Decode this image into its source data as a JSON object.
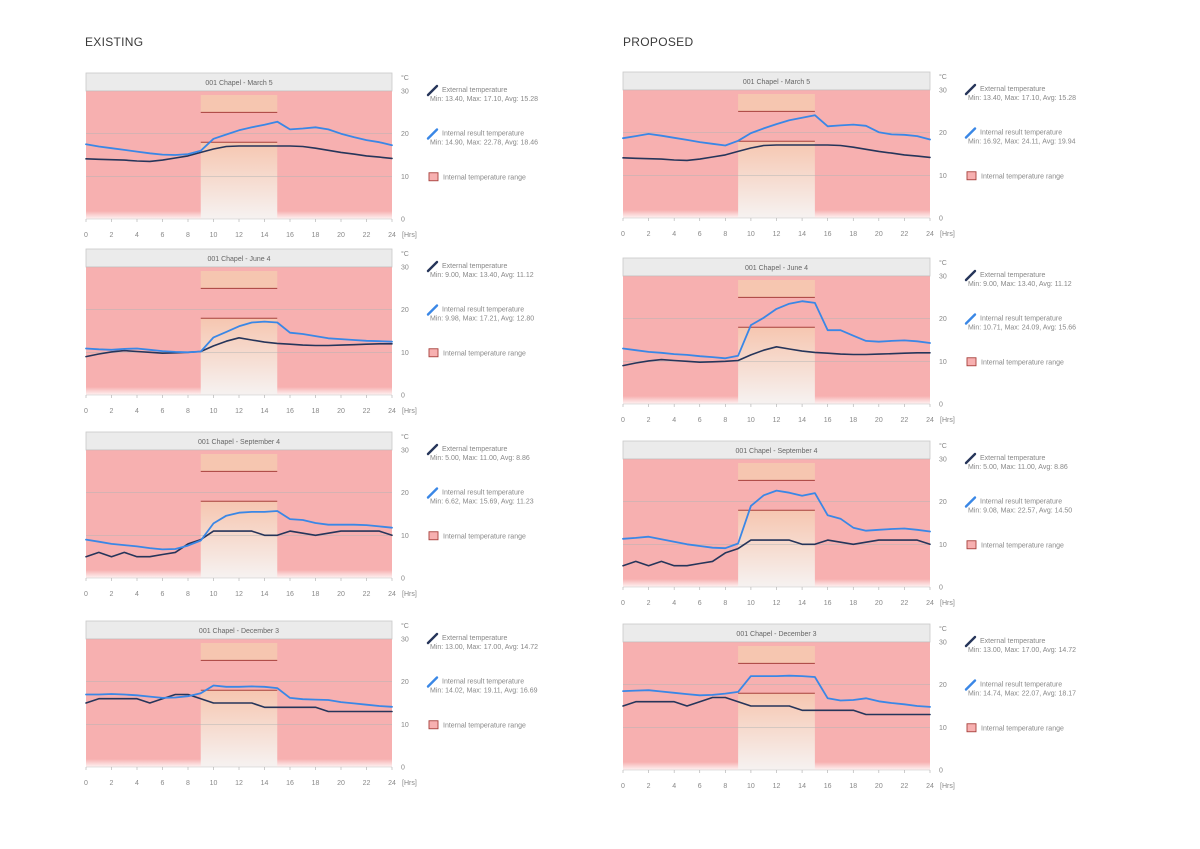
{
  "sections": {
    "existing": "EXISTING",
    "proposed": "PROPOSED"
  },
  "common": {
    "unit": "°C",
    "hours_label": "[Hrs]",
    "x_ticks": [
      "0",
      "2",
      "4",
      "6",
      "8",
      "10",
      "12",
      "14",
      "16",
      "18",
      "20",
      "22",
      "24"
    ],
    "y_ticks": [
      "0",
      "10",
      "20",
      "30"
    ],
    "legend_ext": "External temperature",
    "legend_int": "Internal result temperature",
    "legend_range": "Internal temperature range"
  },
  "colors": {
    "external": "#26355a",
    "internal": "#3a87e6",
    "red_zone": "#f7b0b0",
    "header_bg": "#ebebeb",
    "comfort_top": "#f6c6b0",
    "comfort_bottom": "#f6f2f1",
    "range_line": "#a7413c"
  },
  "chart_data": [
    {
      "type": "line",
      "section": "existing",
      "title": "001 Chapel - March 5",
      "x": [
        0,
        1,
        2,
        3,
        4,
        5,
        6,
        7,
        8,
        9,
        10,
        11,
        12,
        13,
        14,
        15,
        16,
        17,
        18,
        19,
        20,
        21,
        22,
        23,
        24
      ],
      "ylim": [
        0,
        30
      ],
      "xlim": [
        0,
        24
      ],
      "comfort_hours": [
        9,
        15
      ],
      "comfort_range": [
        18,
        25
      ],
      "series": [
        {
          "name": "External temperature",
          "stats": "Min: 13.40, Max: 17.10, Avg: 15.28",
          "values": [
            14.1,
            14.0,
            13.9,
            13.8,
            13.6,
            13.5,
            13.8,
            14.3,
            14.8,
            15.6,
            16.4,
            17.0,
            17.1,
            17.1,
            17.1,
            17.1,
            17.1,
            17.0,
            16.6,
            16.1,
            15.6,
            15.2,
            14.8,
            14.5,
            14.2
          ]
        },
        {
          "name": "Internal result temperature",
          "stats": "Min: 14.90, Max: 22.78, Avg: 18.46",
          "values": [
            17.5,
            17.0,
            16.6,
            16.2,
            15.8,
            15.4,
            15.1,
            15.0,
            15.2,
            16.0,
            18.8,
            19.8,
            20.8,
            21.5,
            22.1,
            22.8,
            21.0,
            21.2,
            21.5,
            21.0,
            20.0,
            19.2,
            18.5,
            18.0,
            17.3
          ]
        }
      ]
    },
    {
      "type": "line",
      "section": "existing",
      "title": "001 Chapel - June 4",
      "x": [
        0,
        1,
        2,
        3,
        4,
        5,
        6,
        7,
        8,
        9,
        10,
        11,
        12,
        13,
        14,
        15,
        16,
        17,
        18,
        19,
        20,
        21,
        22,
        23,
        24
      ],
      "ylim": [
        0,
        30
      ],
      "xlim": [
        0,
        24
      ],
      "comfort_hours": [
        9,
        15
      ],
      "comfort_range": [
        18,
        25
      ],
      "series": [
        {
          "name": "External temperature",
          "stats": "Min: 9.00, Max: 13.40, Avg: 11.12",
          "values": [
            9.0,
            9.6,
            10.1,
            10.4,
            10.2,
            10.0,
            9.8,
            9.9,
            10.0,
            10.2,
            11.5,
            12.6,
            13.4,
            12.9,
            12.4,
            12.1,
            11.9,
            11.7,
            11.6,
            11.6,
            11.7,
            11.8,
            11.9,
            12.0,
            12.0
          ]
        },
        {
          "name": "Internal result temperature",
          "stats": "Min: 9.98, Max: 17.21, Avg: 12.80",
          "values": [
            10.9,
            10.7,
            10.6,
            10.8,
            10.9,
            10.6,
            10.3,
            10.1,
            10.0,
            10.2,
            13.5,
            14.8,
            16.1,
            17.0,
            17.2,
            17.0,
            14.6,
            14.3,
            13.8,
            13.3,
            13.1,
            12.9,
            12.7,
            12.6,
            12.5
          ]
        }
      ]
    },
    {
      "type": "line",
      "section": "existing",
      "title": "001 Chapel - September 4",
      "x": [
        0,
        1,
        2,
        3,
        4,
        5,
        6,
        7,
        8,
        9,
        10,
        11,
        12,
        13,
        14,
        15,
        16,
        17,
        18,
        19,
        20,
        21,
        22,
        23,
        24
      ],
      "ylim": [
        0,
        30
      ],
      "xlim": [
        0,
        24
      ],
      "comfort_hours": [
        9,
        15
      ],
      "comfort_range": [
        18,
        25
      ],
      "series": [
        {
          "name": "External temperature",
          "stats": "Min: 5.00, Max: 11.00, Avg: 8.86",
          "values": [
            5.0,
            6.0,
            5.0,
            6.0,
            5.0,
            5.0,
            5.5,
            6.0,
            8.0,
            9.0,
            11.0,
            11.0,
            11.0,
            11.0,
            10.0,
            10.0,
            11.0,
            10.5,
            10.0,
            10.5,
            11.0,
            11.0,
            11.0,
            11.0,
            10.0
          ]
        },
        {
          "name": "Internal result temperature",
          "stats": "Min: 6.62, Max: 15.69, Avg: 11.23",
          "values": [
            9.0,
            8.5,
            8.0,
            7.7,
            7.4,
            7.0,
            6.7,
            6.8,
            7.6,
            8.8,
            12.8,
            14.6,
            15.3,
            15.5,
            15.5,
            15.7,
            13.8,
            13.6,
            12.9,
            12.5,
            12.5,
            12.5,
            12.4,
            12.1,
            11.8
          ]
        }
      ]
    },
    {
      "type": "line",
      "section": "existing",
      "title": "001 Chapel - December 3",
      "x": [
        0,
        1,
        2,
        3,
        4,
        5,
        6,
        7,
        8,
        9,
        10,
        11,
        12,
        13,
        14,
        15,
        16,
        17,
        18,
        19,
        20,
        21,
        22,
        23,
        24
      ],
      "ylim": [
        0,
        30
      ],
      "xlim": [
        0,
        24
      ],
      "comfort_hours": [
        9,
        15
      ],
      "comfort_range": [
        18,
        25
      ],
      "series": [
        {
          "name": "External temperature",
          "stats": "Min: 13.00, Max: 17.00, Avg: 14.72",
          "values": [
            15.0,
            16.0,
            16.0,
            16.0,
            16.0,
            15.0,
            16.0,
            17.0,
            17.0,
            16.0,
            15.0,
            15.0,
            15.0,
            15.0,
            14.0,
            14.0,
            14.0,
            14.0,
            14.0,
            13.0,
            13.0,
            13.0,
            13.0,
            13.0,
            13.0
          ]
        },
        {
          "name": "Internal result temperature",
          "stats": "Min: 14.02, Max: 19.11, Avg: 16.69",
          "values": [
            17.0,
            17.0,
            17.1,
            17.0,
            16.8,
            16.5,
            16.2,
            16.3,
            16.6,
            17.3,
            19.1,
            18.8,
            18.8,
            18.9,
            18.8,
            18.5,
            16.2,
            15.9,
            15.8,
            15.7,
            15.2,
            14.9,
            14.6,
            14.3,
            14.1
          ]
        }
      ]
    },
    {
      "type": "line",
      "section": "proposed",
      "title": "001 Chapel - March 5",
      "x": [
        0,
        1,
        2,
        3,
        4,
        5,
        6,
        7,
        8,
        9,
        10,
        11,
        12,
        13,
        14,
        15,
        16,
        17,
        18,
        19,
        20,
        21,
        22,
        23,
        24
      ],
      "ylim": [
        0,
        30
      ],
      "xlim": [
        0,
        24
      ],
      "comfort_hours": [
        9,
        15
      ],
      "comfort_range": [
        18,
        25
      ],
      "series": [
        {
          "name": "External temperature",
          "stats": "Min: 13.40, Max: 17.10, Avg: 15.28",
          "values": [
            14.1,
            14.0,
            13.9,
            13.8,
            13.6,
            13.5,
            13.8,
            14.3,
            14.8,
            15.6,
            16.4,
            17.0,
            17.1,
            17.1,
            17.1,
            17.1,
            17.1,
            17.0,
            16.6,
            16.1,
            15.6,
            15.2,
            14.8,
            14.5,
            14.2
          ]
        },
        {
          "name": "Internal result temperature",
          "stats": "Min: 16.92, Max: 24.11, Avg: 19.94",
          "values": [
            18.7,
            19.2,
            19.7,
            19.3,
            18.8,
            18.3,
            17.8,
            17.4,
            17.0,
            18.1,
            19.9,
            21.0,
            22.0,
            22.9,
            23.5,
            24.1,
            21.5,
            21.7,
            21.9,
            21.6,
            20.1,
            19.6,
            19.5,
            19.2,
            18.4
          ]
        }
      ]
    },
    {
      "type": "line",
      "section": "proposed",
      "title": "001 Chapel - June 4",
      "x": [
        0,
        1,
        2,
        3,
        4,
        5,
        6,
        7,
        8,
        9,
        10,
        11,
        12,
        13,
        14,
        15,
        16,
        17,
        18,
        19,
        20,
        21,
        22,
        23,
        24
      ],
      "ylim": [
        0,
        30
      ],
      "xlim": [
        0,
        24
      ],
      "comfort_hours": [
        9,
        15
      ],
      "comfort_range": [
        18,
        25
      ],
      "series": [
        {
          "name": "External temperature",
          "stats": "Min: 9.00, Max: 13.40, Avg: 11.12",
          "values": [
            9.0,
            9.6,
            10.1,
            10.4,
            10.2,
            10.0,
            9.8,
            9.9,
            10.0,
            10.2,
            11.5,
            12.6,
            13.4,
            12.9,
            12.4,
            12.1,
            11.9,
            11.7,
            11.6,
            11.6,
            11.7,
            11.8,
            11.9,
            12.0,
            12.0
          ]
        },
        {
          "name": "Internal result temperature",
          "stats": "Min: 10.71, Max: 24.09, Avg: 15.66",
          "values": [
            13.0,
            12.6,
            12.2,
            12.0,
            11.7,
            11.5,
            11.2,
            11.0,
            10.7,
            11.3,
            18.5,
            20.2,
            22.3,
            23.5,
            24.1,
            23.7,
            17.3,
            17.3,
            16.0,
            14.8,
            14.6,
            14.8,
            14.9,
            14.7,
            14.3
          ]
        }
      ]
    },
    {
      "type": "line",
      "section": "proposed",
      "title": "001 Chapel - September 4",
      "x": [
        0,
        1,
        2,
        3,
        4,
        5,
        6,
        7,
        8,
        9,
        10,
        11,
        12,
        13,
        14,
        15,
        16,
        17,
        18,
        19,
        20,
        21,
        22,
        23,
        24
      ],
      "ylim": [
        0,
        30
      ],
      "xlim": [
        0,
        24
      ],
      "comfort_hours": [
        9,
        15
      ],
      "comfort_range": [
        18,
        25
      ],
      "series": [
        {
          "name": "External temperature",
          "stats": "Min: 5.00, Max: 11.00, Avg: 8.86",
          "values": [
            5.0,
            6.0,
            5.0,
            6.0,
            5.0,
            5.0,
            5.5,
            6.0,
            8.0,
            9.0,
            11.0,
            11.0,
            11.0,
            11.0,
            10.0,
            10.0,
            11.0,
            10.5,
            10.0,
            10.5,
            11.0,
            11.0,
            11.0,
            11.0,
            10.0
          ]
        },
        {
          "name": "Internal result temperature",
          "stats": "Min: 9.08, Max: 22.57, Avg: 14.50",
          "values": [
            11.3,
            11.5,
            11.8,
            11.2,
            10.6,
            10.0,
            9.6,
            9.2,
            9.1,
            10.2,
            19.0,
            21.5,
            22.6,
            22.1,
            21.4,
            22.0,
            16.8,
            16.0,
            13.9,
            13.2,
            13.4,
            13.6,
            13.7,
            13.4,
            13.0
          ]
        }
      ]
    },
    {
      "type": "line",
      "section": "proposed",
      "title": "001 Chapel - December 3",
      "x": [
        0,
        1,
        2,
        3,
        4,
        5,
        6,
        7,
        8,
        9,
        10,
        11,
        12,
        13,
        14,
        15,
        16,
        17,
        18,
        19,
        20,
        21,
        22,
        23,
        24
      ],
      "ylim": [
        0,
        30
      ],
      "xlim": [
        0,
        24
      ],
      "comfort_hours": [
        9,
        15
      ],
      "comfort_range": [
        18,
        25
      ],
      "series": [
        {
          "name": "External temperature",
          "stats": "Min: 13.00, Max: 17.00, Avg: 14.72",
          "values": [
            15.0,
            16.0,
            16.0,
            16.0,
            16.0,
            15.0,
            16.0,
            17.0,
            17.0,
            16.0,
            15.0,
            15.0,
            15.0,
            15.0,
            14.0,
            14.0,
            14.0,
            14.0,
            14.0,
            13.0,
            13.0,
            13.0,
            13.0,
            13.0,
            13.0
          ]
        },
        {
          "name": "Internal result temperature",
          "stats": "Min: 14.74, Max: 22.07, Avg: 18.17",
          "values": [
            18.5,
            18.6,
            18.7,
            18.4,
            18.1,
            17.8,
            17.5,
            17.6,
            17.9,
            18.3,
            22.0,
            22.0,
            22.0,
            22.1,
            22.0,
            21.8,
            16.8,
            16.3,
            16.4,
            16.8,
            16.1,
            15.7,
            15.4,
            15.0,
            14.8
          ]
        }
      ]
    }
  ]
}
